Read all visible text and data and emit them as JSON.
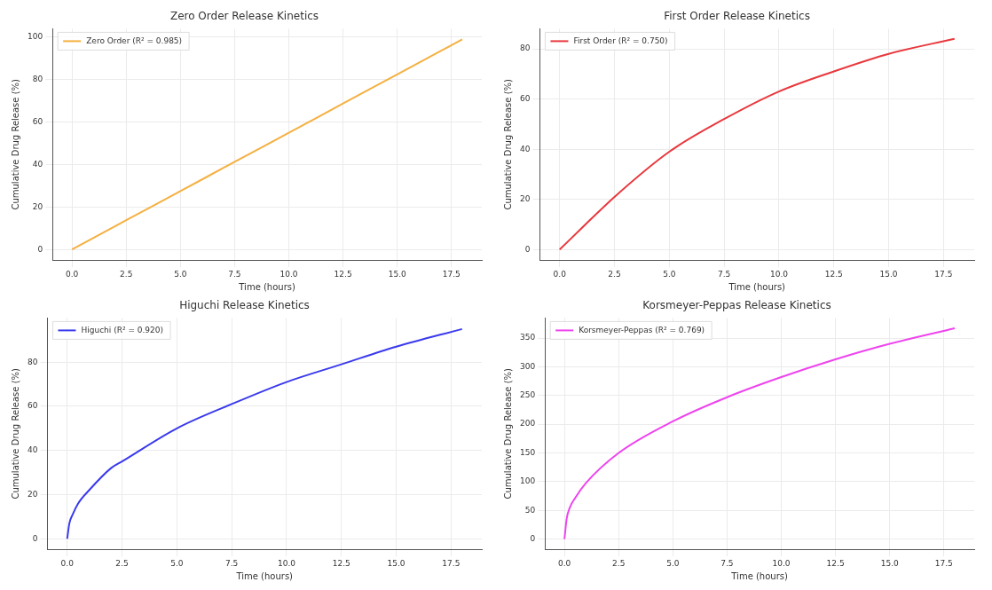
{
  "chart_data": [
    {
      "type": "line",
      "title": "Zero Order Release Kinetics",
      "xlabel": "Time (hours)",
      "ylabel": "Cumulative Drug Release (%)",
      "x": [
        0,
        2.5,
        5,
        7.5,
        10,
        12.5,
        15,
        18
      ],
      "series": [
        {
          "name": "Zero Order (R² = 0.985)",
          "color": "#f5b041",
          "values": [
            0,
            13.8,
            27.5,
            41.3,
            55,
            68.8,
            82.5,
            99
          ]
        }
      ],
      "xlim": [
        -0.9,
        18.9
      ],
      "xticks": [
        {
          "value": 0,
          "label": "0.0"
        },
        2.5,
        {
          "value": 5,
          "label": "5.0"
        },
        7.5,
        {
          "value": 10,
          "label": "10.0"
        },
        12.5,
        {
          "value": 15,
          "label": "15.0"
        },
        17.5
      ],
      "ylim": [
        -5,
        104
      ],
      "yticks": [
        0,
        20,
        40,
        60,
        80,
        100
      ],
      "grid": true,
      "legend": "top left"
    },
    {
      "type": "line",
      "title": "First Order Release Kinetics",
      "xlabel": "Time (hours)",
      "ylabel": "Cumulative Drug Release (%)",
      "x": [
        0,
        1,
        2.5,
        5,
        7.5,
        10,
        12.5,
        15,
        18
      ],
      "series": [
        {
          "name": "First Order (R² = 0.750)",
          "color": "#e8383d",
          "values": [
            0,
            8.5,
            21,
            39,
            52,
            63,
            71,
            78,
            84
          ]
        }
      ],
      "xlim": [
        -0.9,
        18.9
      ],
      "xticks": [
        {
          "value": 0,
          "label": "0.0"
        },
        2.5,
        {
          "value": 5,
          "label": "5.0"
        },
        7.5,
        {
          "value": 10,
          "label": "10.0"
        },
        12.5,
        {
          "value": 15,
          "label": "15.0"
        },
        17.5
      ],
      "ylim": [
        -4.2,
        88
      ],
      "yticks": [
        0,
        20,
        40,
        60,
        80
      ],
      "grid": true,
      "legend": "top left"
    },
    {
      "type": "line",
      "title": "Higuchi Release Kinetics",
      "xlabel": "Time (hours)",
      "ylabel": "Cumulative Drug Release (%)",
      "x": [
        0,
        0.1,
        0.25,
        0.5,
        1,
        2,
        2.5,
        5,
        7.5,
        10,
        12.5,
        15,
        18
      ],
      "series": [
        {
          "name": "Higuchi (R² = 0.920)",
          "color": "#3a3aee",
          "values": [
            0,
            7,
            11,
            16,
            22,
            32,
            35,
            50,
            61,
            71,
            79,
            87,
            95
          ]
        }
      ],
      "xlim": [
        -0.9,
        18.9
      ],
      "xticks": [
        {
          "value": 0,
          "label": "0.0"
        },
        2.5,
        {
          "value": 5,
          "label": "5.0"
        },
        7.5,
        {
          "value": 10,
          "label": "10.0"
        },
        12.5,
        {
          "value": 15,
          "label": "15.0"
        },
        17.5
      ],
      "ylim": [
        -4.8,
        100
      ],
      "yticks": [
        0,
        20,
        40,
        60,
        80
      ],
      "grid": true,
      "legend": "top left"
    },
    {
      "type": "line",
      "title": "Korsmeyer-Peppas Release Kinetics",
      "xlabel": "Time (hours)",
      "ylabel": "Cumulative Drug Release (%)",
      "x": [
        0,
        0.1,
        0.25,
        0.5,
        1,
        2.5,
        5,
        7.5,
        10,
        12.5,
        15,
        18
      ],
      "series": [
        {
          "name": "Korsmeyer-Peppas (R² = 0.769)",
          "color": "#ee44ee",
          "values": [
            0,
            35,
            55,
            72,
            98,
            150,
            205,
            247,
            282,
            313,
            340,
            367
          ]
        }
      ],
      "xlim": [
        -0.9,
        18.9
      ],
      "xticks": [
        {
          "value": 0,
          "label": "0.0"
        },
        2.5,
        {
          "value": 5,
          "label": "5.0"
        },
        7.5,
        {
          "value": 10,
          "label": "10.0"
        },
        12.5,
        {
          "value": 15,
          "label": "15.0"
        },
        17.5
      ],
      "ylim": [
        -18,
        385
      ],
      "yticks": [
        0,
        50,
        100,
        150,
        200,
        250,
        300,
        350
      ],
      "grid": true,
      "legend": "top left"
    }
  ]
}
